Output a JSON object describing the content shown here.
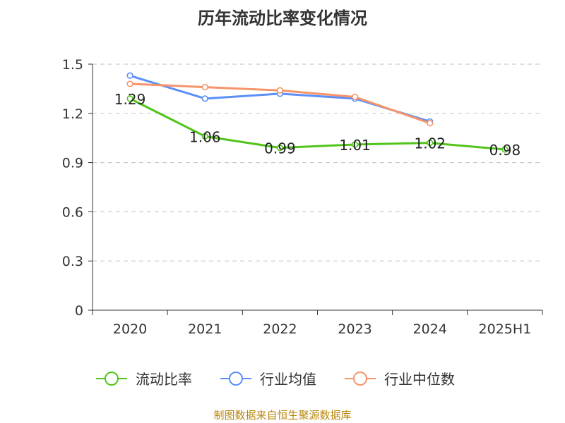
{
  "title": "历年流动比率变化情况",
  "source": "制图数据来自恒生聚源数据库",
  "chart_data": {
    "type": "line",
    "categories": [
      "2020",
      "2021",
      "2022",
      "2023",
      "2024",
      "2025H1"
    ],
    "ylim": [
      0,
      1.5
    ],
    "yticks": [
      "0",
      "0.3",
      "0.6",
      "0.9",
      "1.2",
      "1.5"
    ],
    "grid": true,
    "legend_position": "bottom",
    "series": [
      {
        "name": "流动比率",
        "values": [
          1.29,
          1.06,
          0.99,
          1.01,
          1.02,
          0.98
        ],
        "labels": [
          "1.29",
          "1.06",
          "0.99",
          "1.01",
          "1.02",
          "0.98"
        ],
        "color": "#52c41a",
        "show_labels": true
      },
      {
        "name": "行业均值",
        "values": [
          1.43,
          1.29,
          1.32,
          1.29,
          1.15,
          null
        ],
        "color": "#5b8ff9",
        "show_labels": false
      },
      {
        "name": "行业中位数",
        "values": [
          1.38,
          1.36,
          1.34,
          1.3,
          1.14,
          null
        ],
        "color": "#f6946a",
        "show_labels": false
      }
    ]
  }
}
